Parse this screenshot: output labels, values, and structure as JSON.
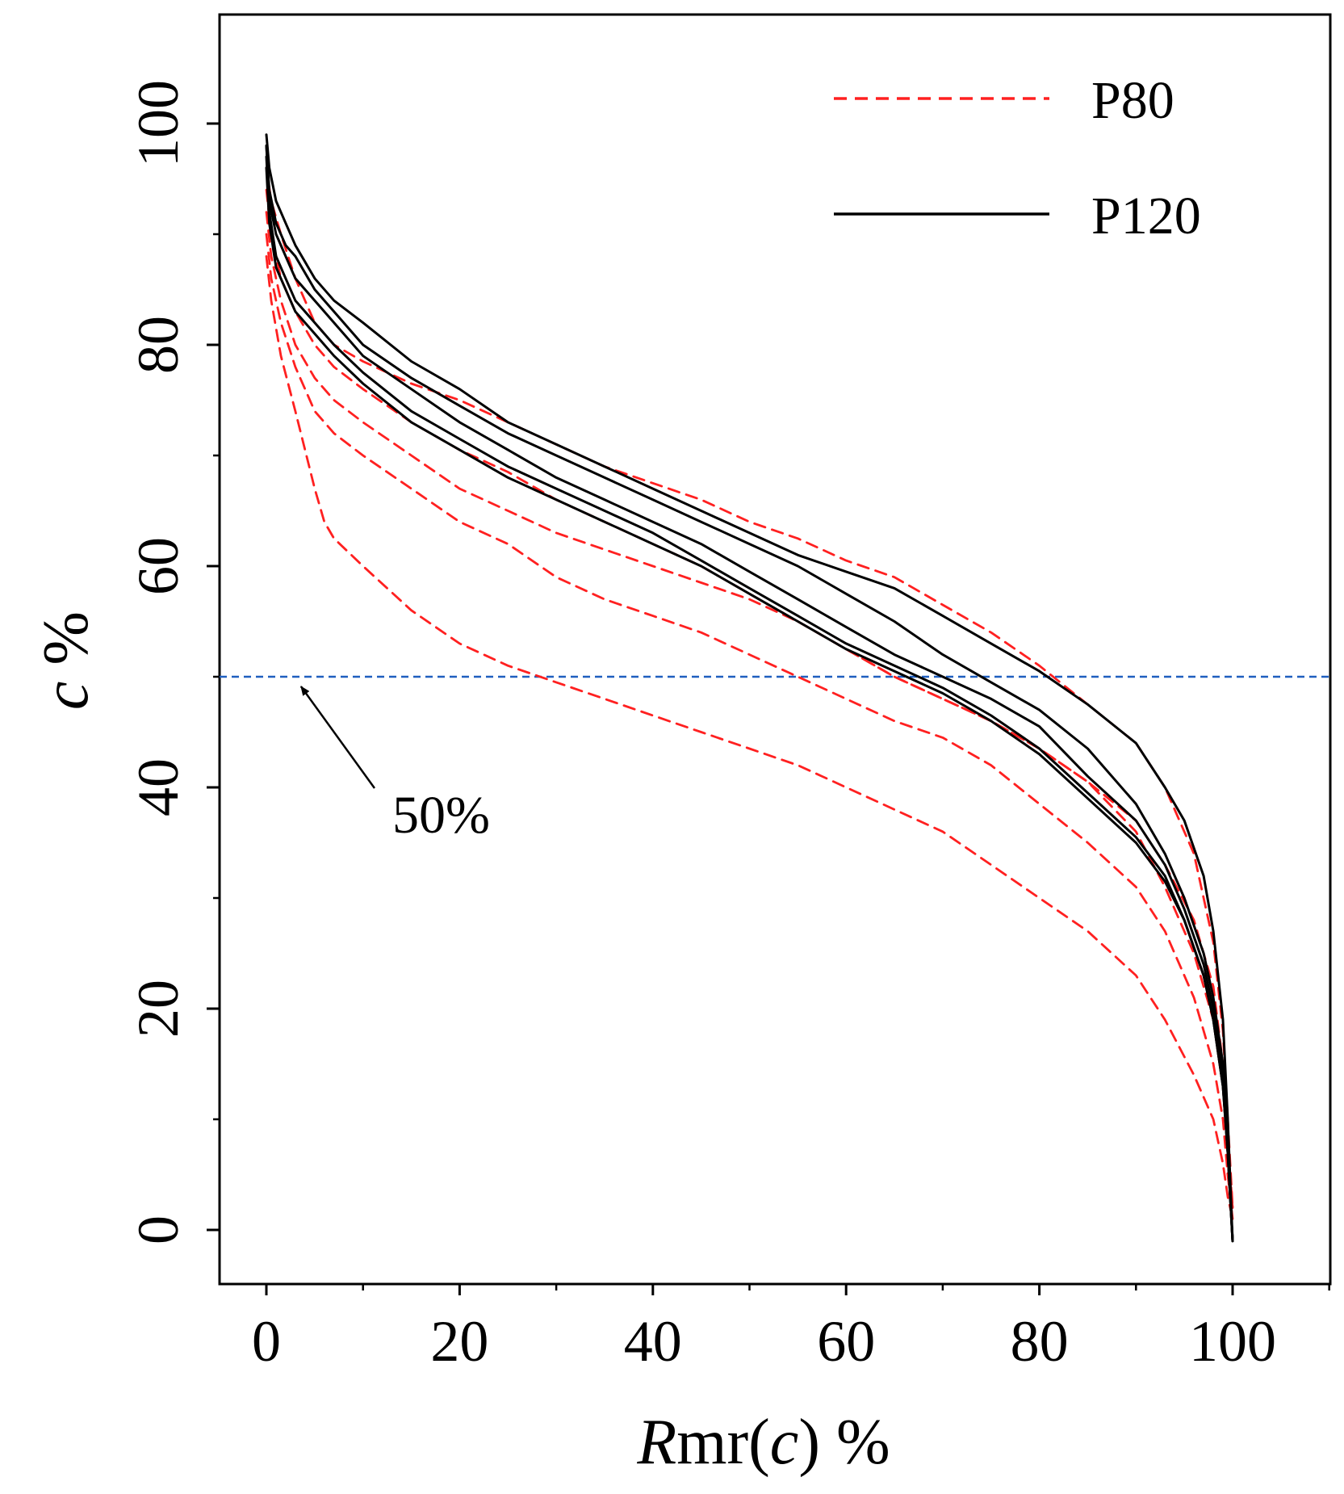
{
  "chart_data": {
    "type": "line",
    "title": "",
    "xlabel": "Rmr(c) %",
    "ylabel": "c %",
    "xlim": [
      -5,
      110
    ],
    "ylim": [
      -5,
      110
    ],
    "xticks": [
      0,
      20,
      40,
      60,
      80,
      100
    ],
    "yticks": [
      0,
      20,
      40,
      60,
      80,
      100
    ],
    "xtick_labels": [
      "0",
      "20",
      "40",
      "60",
      "80",
      "100"
    ],
    "ytick_labels": [
      "0",
      "20",
      "40",
      "60",
      "80",
      "100"
    ],
    "grid": false,
    "legend_position": "top-right",
    "reference_line": {
      "y": 50,
      "color": "#1f5fbf",
      "style": "dashed"
    },
    "annotation": {
      "text": "50%",
      "points_to": [
        4,
        50
      ],
      "label_at": [
        13,
        38
      ]
    },
    "groups": [
      {
        "name": "P80",
        "color": "#ff2020",
        "style": "dashed"
      },
      {
        "name": "P120",
        "color": "#000000",
        "style": "solid"
      }
    ],
    "series": [
      {
        "name": "P80",
        "group": "P80",
        "x": [
          0,
          0.5,
          1.5,
          3,
          5,
          7,
          10,
          15,
          20,
          25,
          30,
          35,
          40,
          45,
          50,
          55,
          60,
          65,
          70,
          75,
          80,
          85,
          90,
          93,
          96,
          98,
          99,
          99.5,
          100
        ],
        "y": [
          96,
          93,
          90,
          86,
          82,
          80,
          78.5,
          76.5,
          75,
          73,
          71,
          69,
          67.5,
          66,
          64,
          62.5,
          60.5,
          59,
          56.5,
          54,
          51,
          47.5,
          44,
          40,
          34,
          26,
          18,
          10,
          2
        ]
      },
      {
        "name": "P80",
        "group": "P80",
        "x": [
          0,
          0.5,
          1.5,
          3,
          5,
          7,
          10,
          15,
          20,
          25,
          30,
          35,
          40,
          45,
          50,
          55,
          60,
          65,
          70,
          75,
          80,
          85,
          90,
          93,
          96,
          98,
          99,
          99.5,
          100
        ],
        "y": [
          94,
          90,
          86,
          83,
          80,
          78,
          76,
          73,
          70.5,
          68.5,
          66,
          64,
          62,
          60,
          57.5,
          55,
          52.5,
          50,
          48,
          46,
          43.5,
          40.5,
          37,
          33,
          28,
          22,
          15,
          8,
          2
        ]
      },
      {
        "name": "P80",
        "group": "P80",
        "x": [
          0,
          0.5,
          1.5,
          3,
          5,
          7,
          10,
          15,
          20,
          25,
          30,
          35,
          40,
          45,
          50,
          55,
          60,
          65,
          70,
          75,
          80,
          85,
          90,
          93,
          96,
          98,
          99,
          99.5,
          100
        ],
        "y": [
          92,
          88,
          84,
          80,
          77,
          75,
          73,
          70,
          67,
          65,
          63,
          61.5,
          60,
          58.5,
          57,
          55,
          52.5,
          50,
          48,
          46,
          43.5,
          40.5,
          36,
          31,
          25,
          19,
          13,
          7,
          2
        ]
      },
      {
        "name": "P80",
        "group": "P80",
        "x": [
          0,
          0.5,
          1.5,
          3,
          5,
          7,
          10,
          15,
          20,
          25,
          30,
          35,
          40,
          45,
          50,
          55,
          60,
          65,
          70,
          75,
          80,
          85,
          90,
          93,
          96,
          98,
          99,
          99.5,
          100
        ],
        "y": [
          90,
          86,
          82,
          78,
          74,
          72,
          70,
          67,
          64,
          62,
          59,
          57,
          55.5,
          54,
          52,
          50,
          48,
          46,
          44.5,
          42,
          38.5,
          35,
          31,
          27,
          21,
          15,
          10,
          5,
          1
        ]
      },
      {
        "name": "P80",
        "group": "P80",
        "x": [
          0,
          0.5,
          1.5,
          3,
          5,
          6,
          7,
          10,
          15,
          20,
          25,
          30,
          35,
          40,
          45,
          50,
          55,
          60,
          65,
          70,
          75,
          80,
          85,
          90,
          93,
          96,
          98,
          99,
          99.5,
          100
        ],
        "y": [
          88,
          84,
          79,
          74,
          67,
          64,
          62.5,
          60,
          56,
          53,
          51,
          49.5,
          48,
          46.5,
          45,
          43.5,
          42,
          40,
          38,
          36,
          33,
          30,
          27,
          23,
          19,
          14,
          10,
          6,
          3,
          1
        ]
      },
      {
        "name": "P120",
        "group": "P120",
        "x": [
          0,
          0.3,
          1,
          2,
          3,
          5,
          7,
          10,
          15,
          20,
          25,
          30,
          35,
          40,
          45,
          50,
          55,
          60,
          65,
          70,
          75,
          80,
          85,
          90,
          93,
          95,
          97,
          98,
          99,
          99.5,
          100
        ],
        "y": [
          99,
          96,
          93,
          91,
          89,
          86,
          84,
          82,
          78.5,
          76,
          73,
          71,
          69,
          67,
          65,
          63,
          61,
          59.5,
          58,
          55.5,
          53,
          50.5,
          47.5,
          44,
          40,
          37,
          32,
          27,
          19,
          10,
          -1
        ]
      },
      {
        "name": "P120",
        "group": "P120",
        "x": [
          0,
          0.3,
          1,
          2,
          3,
          5,
          7,
          10,
          15,
          20,
          25,
          30,
          35,
          40,
          45,
          50,
          55,
          60,
          65,
          70,
          75,
          80,
          85,
          90,
          93,
          95,
          97,
          98,
          99,
          99.5,
          100
        ],
        "y": [
          98,
          94,
          91,
          89,
          88,
          85,
          83,
          80,
          77,
          74.5,
          72,
          70,
          68,
          66,
          64,
          62,
          60,
          57.5,
          55,
          52,
          49.5,
          47,
          43.5,
          38.5,
          34,
          30,
          25,
          21,
          15,
          8,
          -1
        ]
      },
      {
        "name": "P120",
        "group": "P120",
        "x": [
          0,
          0.3,
          1,
          2,
          3,
          5,
          7,
          10,
          15,
          20,
          25,
          30,
          35,
          40,
          45,
          50,
          55,
          60,
          65,
          70,
          75,
          80,
          85,
          90,
          93,
          95,
          97,
          98,
          99,
          99.5,
          100
        ],
        "y": [
          98,
          93,
          90,
          88,
          86,
          84,
          82,
          79,
          76,
          73,
          70.5,
          68,
          66,
          64,
          62,
          59.5,
          57,
          54.5,
          52,
          50,
          48,
          45.5,
          41,
          37,
          33,
          29,
          24,
          20,
          14,
          7,
          -1
        ]
      },
      {
        "name": "P120",
        "group": "P120",
        "x": [
          0,
          0.3,
          1,
          2,
          3,
          5,
          7,
          10,
          15,
          20,
          25,
          30,
          35,
          40,
          45,
          50,
          55,
          60,
          65,
          70,
          75,
          80,
          85,
          90,
          93,
          95,
          97,
          98,
          99,
          99.5,
          100
        ],
        "y": [
          97,
          92,
          88,
          86,
          84,
          82,
          80,
          77.5,
          74,
          71.5,
          69,
          67,
          65,
          63,
          60.5,
          58,
          55.5,
          53,
          51,
          49,
          46.5,
          43.5,
          39.5,
          35.5,
          32,
          28,
          23,
          19,
          13,
          7,
          -1
        ]
      },
      {
        "name": "P120",
        "group": "P120",
        "x": [
          0,
          0.3,
          1,
          2,
          3,
          5,
          7,
          10,
          15,
          20,
          25,
          30,
          35,
          40,
          45,
          50,
          55,
          60,
          65,
          70,
          75,
          80,
          85,
          90,
          93,
          95,
          97,
          98,
          99,
          99.5,
          100
        ],
        "y": [
          96,
          91,
          87,
          85,
          83,
          81,
          79,
          76.5,
          73,
          70.5,
          68,
          66,
          64,
          62,
          60,
          57.5,
          55,
          52.5,
          50.5,
          48.5,
          46,
          43,
          39,
          35,
          31.5,
          28,
          23,
          19,
          13,
          7,
          -1
        ]
      }
    ]
  }
}
